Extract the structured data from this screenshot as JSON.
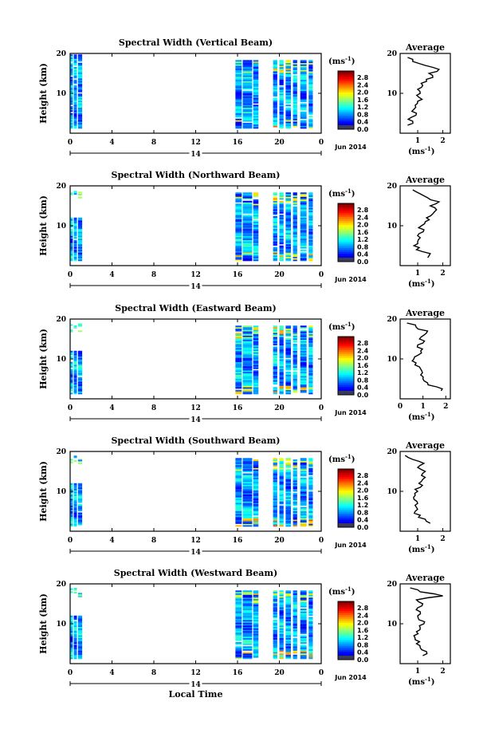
{
  "chart_data": [
    {
      "type": "heatmap",
      "title": "Spectral Width (Vertical Beam)",
      "ylabel": "Height (km)",
      "y_ticks": [
        "20",
        "10"
      ],
      "x_ticks": [
        "0",
        "4",
        "8",
        "12",
        "16",
        "20",
        "0"
      ],
      "date_mid": "14",
      "date_label": "Jun 2014",
      "colorbar": {
        "unit": "(ms",
        "unit_exp": "-1",
        "unit_close": ")",
        "ticks": [
          "2.8",
          "2.4",
          "2.0",
          "1.6",
          "1.2",
          "0.8",
          "0.4",
          "0.0"
        ]
      },
      "average": {
        "title": "Average",
        "x_ticks": [
          "1",
          "2"
        ],
        "y_ticks": [
          "20",
          "10"
        ],
        "xlabel": "(ms",
        "xlabel_exp": "-1",
        "xlabel_close": ")",
        "height_km": [
          2,
          3,
          4,
          5,
          6,
          7,
          8,
          9,
          10,
          11,
          12,
          13,
          14,
          15,
          16,
          17,
          18,
          19
        ],
        "values": [
          0.6,
          0.8,
          0.75,
          0.95,
          0.85,
          0.9,
          1.0,
          1.05,
          1.1,
          1.0,
          1.2,
          1.35,
          1.6,
          1.45,
          1.85,
          1.3,
          0.8,
          0.6
        ]
      }
    },
    {
      "type": "heatmap",
      "title": "Spectral Width (Northward Beam)",
      "ylabel": "Height (km)",
      "y_ticks": [
        "20",
        "10"
      ],
      "x_ticks": [
        "0",
        "4",
        "8",
        "12",
        "16",
        "20",
        "0"
      ],
      "date_mid": "14",
      "date_label": "Jun 2014",
      "colorbar": {
        "unit": "(ms",
        "unit_exp": "-1",
        "unit_close": ")",
        "ticks": [
          "2.8",
          "2.4",
          "2.0",
          "1.6",
          "1.2",
          "0.8",
          "0.4",
          "0.0"
        ]
      },
      "average": {
        "title": "Average",
        "x_ticks": [
          "1",
          "2"
        ],
        "y_ticks": [
          "20",
          "10"
        ],
        "xlabel": "(ms",
        "xlabel_exp": "-1",
        "xlabel_close": ")",
        "height_km": [
          2,
          3,
          4,
          5,
          6,
          7,
          8,
          9,
          10,
          11,
          12,
          13,
          14,
          15,
          16,
          17,
          18,
          19
        ],
        "values": [
          1.4,
          1.5,
          0.95,
          0.85,
          1.0,
          1.1,
          1.05,
          1.25,
          1.15,
          1.3,
          1.35,
          1.6,
          1.75,
          1.5,
          1.85,
          1.4,
          1.1,
          0.8
        ]
      }
    },
    {
      "type": "heatmap",
      "title": "Spectral Width (Eastward Beam)",
      "ylabel": "Height (km)",
      "y_ticks": [
        "20",
        "10"
      ],
      "x_ticks": [
        "0",
        "4",
        "8",
        "12",
        "16",
        "20",
        "0"
      ],
      "date_mid": "14",
      "date_label": "Jun 2014",
      "colorbar": {
        "unit": "(ms",
        "unit_exp": "-1",
        "unit_close": ")",
        "ticks": [
          "2.8",
          "2.4",
          "2.0",
          "1.6",
          "1.2",
          "0.8",
          "0.4",
          "0.0"
        ]
      },
      "average": {
        "title": "Average",
        "x_ticks": [
          "0",
          "1",
          "2"
        ],
        "y_ticks": [
          "20",
          "10"
        ],
        "xlabel": "(ms",
        "xlabel_exp": "-1",
        "xlabel_close": ")",
        "height_km": [
          2,
          3,
          4,
          5,
          6,
          7,
          8,
          9,
          10,
          11,
          12,
          13,
          14,
          15,
          16,
          17,
          18,
          19
        ],
        "values": [
          1.8,
          1.6,
          1.2,
          1.0,
          0.9,
          0.95,
          0.85,
          0.7,
          0.6,
          0.8,
          0.9,
          0.75,
          1.0,
          0.85,
          1.05,
          1.2,
          0.7,
          0.3
        ]
      }
    },
    {
      "type": "heatmap",
      "title": "Spectral Width (Southward Beam)",
      "ylabel": "Height (km)",
      "y_ticks": [
        "20",
        "10"
      ],
      "x_ticks": [
        "0",
        "4",
        "8",
        "12",
        "16",
        "20",
        "0"
      ],
      "date_mid": "14",
      "date_label": "Jun 2014",
      "colorbar": {
        "unit": "(ms",
        "unit_exp": "-1",
        "unit_close": ")",
        "ticks": [
          "2.8",
          "2.4",
          "2.0",
          "1.6",
          "1.2",
          "0.8",
          "0.4",
          "0.0"
        ]
      },
      "average": {
        "title": "Average",
        "x_ticks": [
          "1",
          "2"
        ],
        "y_ticks": [
          "20",
          "10"
        ],
        "xlabel": "(ms",
        "xlabel_exp": "-1",
        "xlabel_close": ")",
        "height_km": [
          2,
          3,
          4,
          5,
          6,
          7,
          8,
          9,
          10,
          11,
          12,
          13,
          14,
          15,
          16,
          17,
          18,
          19
        ],
        "values": [
          1.5,
          1.3,
          1.1,
          0.9,
          0.95,
          1.0,
          0.85,
          0.9,
          1.0,
          1.1,
          1.05,
          1.2,
          1.15,
          1.3,
          1.0,
          1.25,
          0.8,
          0.5
        ]
      }
    },
    {
      "type": "heatmap",
      "title": "Spectral Width (Westward Beam)",
      "ylabel": "Height (km)",
      "y_ticks": [
        "20",
        "10"
      ],
      "x_ticks": [
        "0",
        "4",
        "8",
        "12",
        "16",
        "20",
        "0"
      ],
      "date_mid": "14",
      "date_label": "Jun 2014",
      "xlabel": "Local Time",
      "colorbar": {
        "unit": "(ms",
        "unit_exp": "-1",
        "unit_close": ")",
        "ticks": [
          "2.8",
          "2.4",
          "2.0",
          "1.6",
          "1.2",
          "0.8",
          "0.4",
          "0.0"
        ]
      },
      "average": {
        "title": "Average",
        "x_ticks": [
          "1",
          "2"
        ],
        "y_ticks": [
          "20",
          "10"
        ],
        "xlabel": "(ms",
        "xlabel_exp": "-1",
        "xlabel_close": ")",
        "height_km": [
          2,
          3,
          4,
          5,
          6,
          7,
          8,
          9,
          10,
          11,
          12,
          13,
          14,
          15,
          16,
          17,
          18,
          19
        ],
        "values": [
          1.2,
          1.35,
          1.1,
          0.95,
          0.9,
          0.85,
          0.95,
          1.1,
          1.25,
          1.05,
          1.0,
          1.1,
          1.0,
          1.2,
          0.95,
          2.0,
          1.1,
          0.7
        ]
      }
    }
  ]
}
